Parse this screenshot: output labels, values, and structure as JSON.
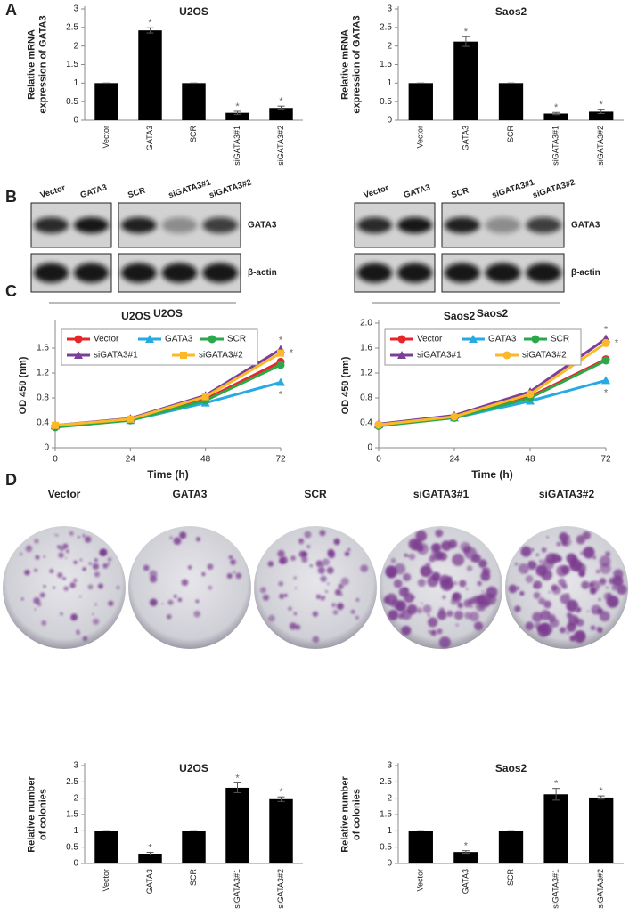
{
  "panel_labels": [
    "A",
    "B",
    "C",
    "D"
  ],
  "blots": [
    {
      "lanes_left": [
        "Vector",
        "GATA3"
      ],
      "lanes_right": [
        "SCR",
        "siGATA3#1",
        "siGATA3#2"
      ],
      "bands": [
        "GATA3",
        "β-actin"
      ],
      "cell": "U2OS"
    },
    {
      "lanes_left": [
        "Vector",
        "GATA3"
      ],
      "lanes_right": [
        "SCR",
        "siGATA3#1",
        "siGATA3#2"
      ],
      "bands": [
        "GATA3",
        "β-actin"
      ],
      "cell": "Saos2"
    }
  ],
  "colonies": {
    "labels": [
      "Vector",
      "GATA3",
      "SCR",
      "siGATA3#1",
      "siGATA3#2"
    ]
  },
  "chart_data": [
    {
      "type": "bar",
      "title": "U2OS",
      "ylabel": [
        "Relative mRNA",
        "expression of GATA3"
      ],
      "categories": [
        "Vector",
        "GATA3",
        "SCR",
        "siGATA3#1",
        "siGATA3#2"
      ],
      "values": [
        1,
        2.42,
        1,
        0.2,
        0.33
      ],
      "errors": [
        0,
        0.07,
        0,
        0.04,
        0.05
      ],
      "significance": [
        null,
        "*",
        null,
        "*",
        "*"
      ],
      "color": "#000000",
      "ylim": [
        0,
        3
      ],
      "yticks": [
        0,
        0.5,
        1,
        1.5,
        2,
        2.5,
        3
      ]
    },
    {
      "type": "bar",
      "title": "Saos2",
      "ylabel": [
        "Relative mRNA",
        "expression of GATA3"
      ],
      "categories": [
        "Vector",
        "GATA3",
        "SCR",
        "siGATA3#1",
        "siGATA3#2"
      ],
      "values": [
        1,
        2.12,
        1,
        0.18,
        0.23
      ],
      "errors": [
        0,
        0.13,
        0,
        0.03,
        0.05
      ],
      "significance": [
        null,
        "*",
        null,
        "*",
        "*"
      ],
      "color": "#000000",
      "ylim": [
        0,
        3
      ],
      "yticks": [
        0,
        0.5,
        1,
        1.5,
        2,
        2.5,
        3
      ]
    },
    {
      "type": "line",
      "title": "U2OS",
      "xlabel": "Time (h)",
      "ylabel": [
        "OD 450 (nm)"
      ],
      "x": [
        0,
        24,
        48,
        72
      ],
      "xlim": [
        0,
        72
      ],
      "xticks": [
        0,
        24,
        48,
        72
      ],
      "ylim": [
        0,
        2
      ],
      "yticks": [
        0,
        0.4,
        0.8,
        1.2,
        1.6
      ],
      "legend": "top-left",
      "series": [
        {
          "name": "Vector",
          "color": "#e8262a",
          "marker": "circle",
          "values": [
            0.35,
            0.45,
            0.78,
            1.38
          ],
          "significance": null
        },
        {
          "name": "GATA3",
          "color": "#27aae1",
          "marker": "triangle",
          "values": [
            0.35,
            0.44,
            0.72,
            1.05
          ],
          "significance": "*"
        },
        {
          "name": "SCR",
          "color": "#2aa84a",
          "marker": "circle",
          "values": [
            0.33,
            0.44,
            0.76,
            1.33
          ],
          "significance": null
        },
        {
          "name": "siGATA3#1",
          "color": "#7b3f98",
          "marker": "triangle",
          "values": [
            0.36,
            0.47,
            0.84,
            1.58
          ],
          "significance": "*"
        },
        {
          "name": "siGATA3#2",
          "color": "#fbb829",
          "marker": "square",
          "values": [
            0.36,
            0.46,
            0.82,
            1.52
          ],
          "significance": "*"
        }
      ]
    },
    {
      "type": "line",
      "title": "Saos2",
      "xlabel": "Time (h)",
      "ylabel": [
        "OD 450 (nm)"
      ],
      "x": [
        0,
        24,
        48,
        72
      ],
      "xlim": [
        0,
        72
      ],
      "xticks": [
        0,
        24,
        48,
        72
      ],
      "ylim": [
        0,
        2
      ],
      "yticks": [
        0,
        0.4,
        0.8,
        1.2,
        1.6,
        {
          "value": 2,
          "label": "2.0"
        }
      ],
      "legend": "top-left",
      "series": [
        {
          "name": "Vector",
          "color": "#e8262a",
          "marker": "circle",
          "values": [
            0.37,
            0.5,
            0.82,
            1.42
          ],
          "significance": null
        },
        {
          "name": "GATA3",
          "color": "#27aae1",
          "marker": "triangle",
          "values": [
            0.37,
            0.48,
            0.75,
            1.08
          ],
          "significance": "*"
        },
        {
          "name": "SCR",
          "color": "#2aa84a",
          "marker": "circle",
          "values": [
            0.35,
            0.48,
            0.8,
            1.4
          ],
          "significance": null
        },
        {
          "name": "siGATA3#1",
          "color": "#7b3f98",
          "marker": "triangle",
          "values": [
            0.38,
            0.52,
            0.9,
            1.75
          ],
          "significance": "*"
        },
        {
          "name": "siGATA3#2",
          "color": "#fbb829",
          "marker": "circle",
          "values": [
            0.37,
            0.5,
            0.86,
            1.68
          ],
          "significance": "*"
        }
      ]
    },
    {
      "type": "bar",
      "title": "U2OS",
      "ylabel": [
        "Relative number",
        "of colonies"
      ],
      "categories": [
        "Vector",
        "GATA3",
        "SCR",
        "siGATA3#1",
        "siGATA3#2"
      ],
      "values": [
        1,
        0.3,
        1,
        2.32,
        1.97
      ],
      "errors": [
        0,
        0.04,
        0,
        0.15,
        0.07
      ],
      "significance": [
        null,
        "*",
        null,
        "*",
        "*"
      ],
      "color": "#000000",
      "ylim": [
        0,
        3
      ],
      "yticks": [
        0,
        0.5,
        1,
        1.5,
        2,
        2.5,
        3
      ]
    },
    {
      "type": "bar",
      "title": "Saos2",
      "ylabel": [
        "Relative number",
        "of colonies"
      ],
      "categories": [
        "Vector",
        "GATA3",
        "SCR",
        "siGATA3#1",
        "siGATA3#2"
      ],
      "values": [
        1,
        0.35,
        1,
        2.12,
        2.02
      ],
      "errors": [
        0,
        0.04,
        0,
        0.18,
        0.05
      ],
      "significance": [
        null,
        "*",
        null,
        "*",
        "*"
      ],
      "color": "#000000",
      "ylim": [
        0,
        3
      ],
      "yticks": [
        0,
        0.5,
        1,
        1.5,
        2,
        2.5,
        3
      ]
    }
  ]
}
